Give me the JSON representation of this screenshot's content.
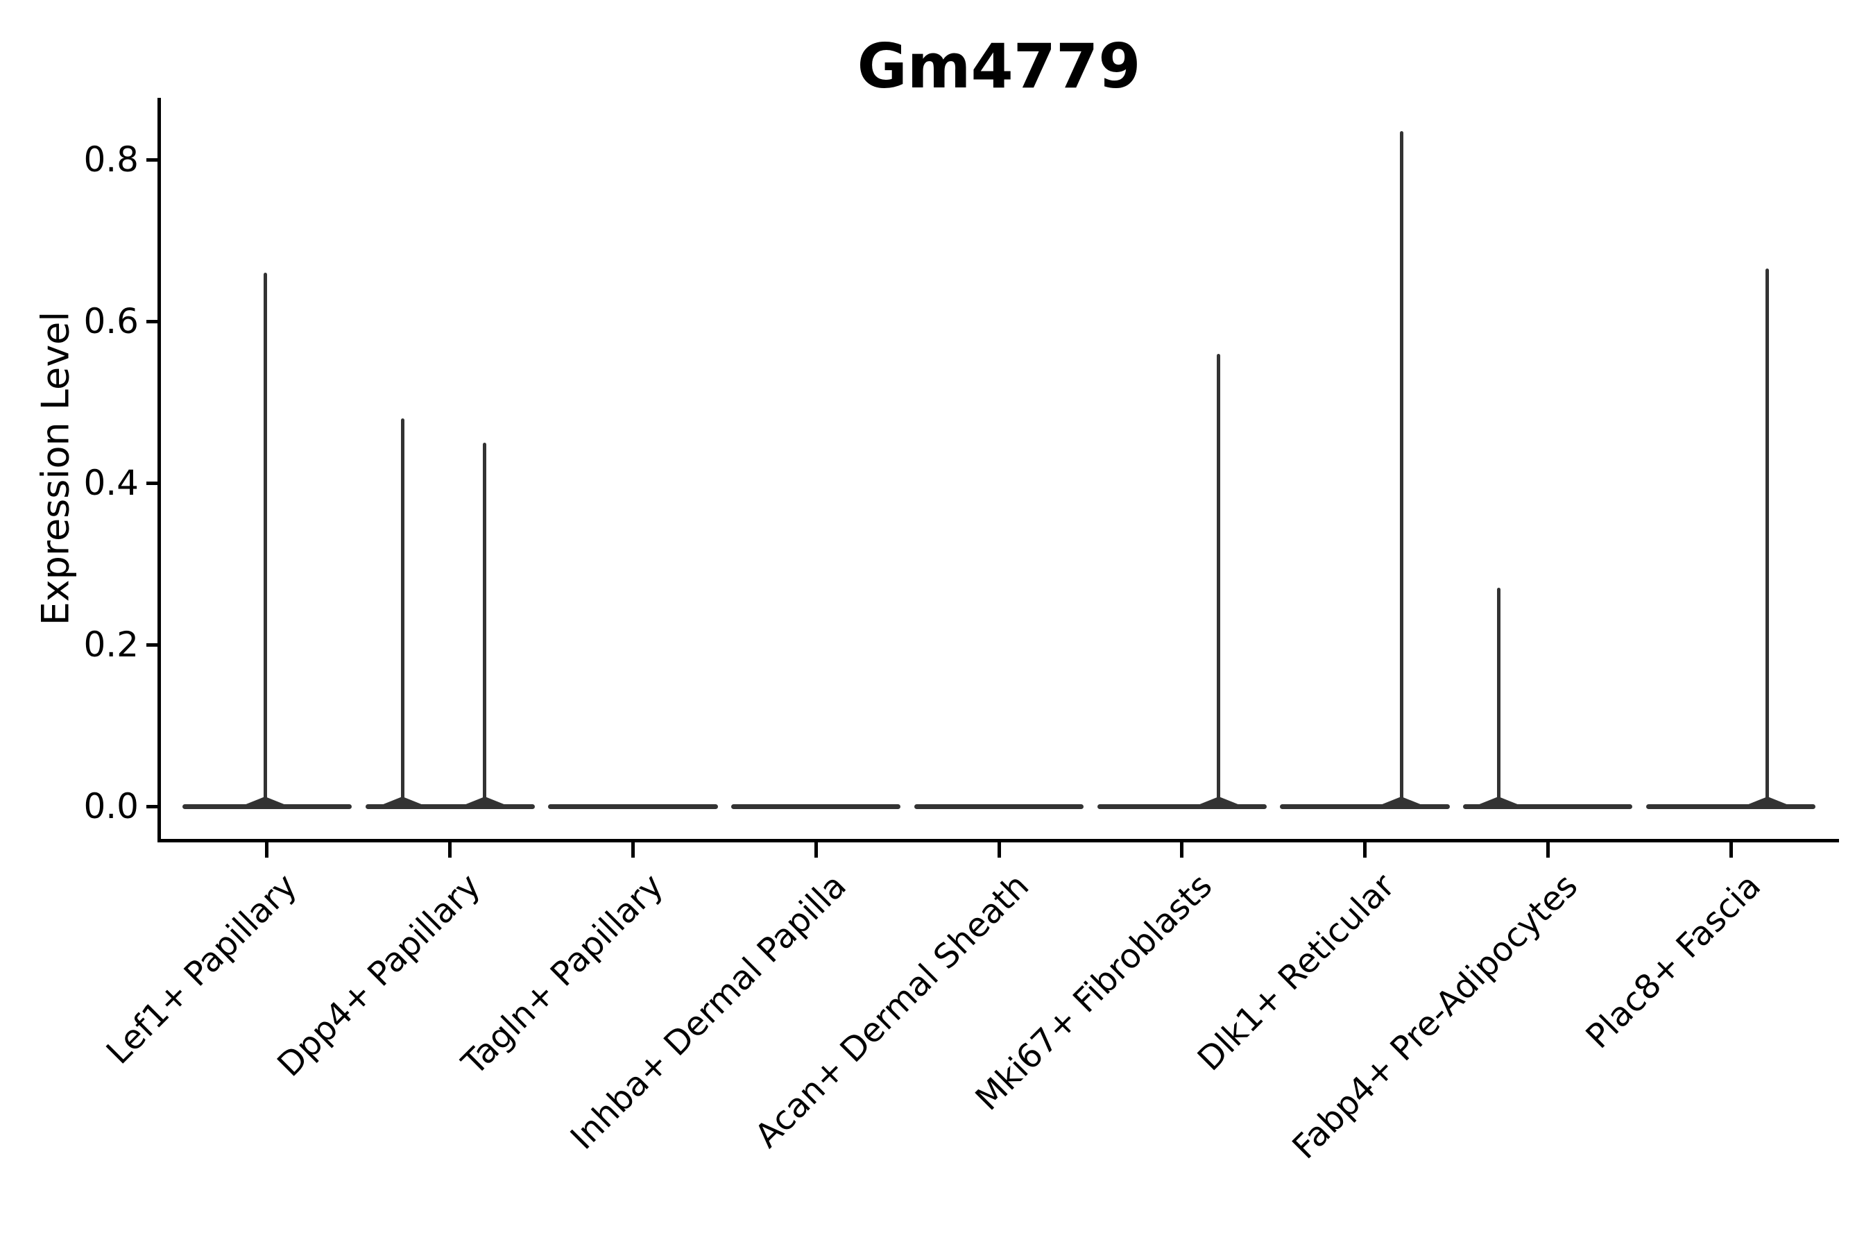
{
  "figure": {
    "background": "#ffffff"
  },
  "chart_data": {
    "type": "violin",
    "title": "Gm4779",
    "ylabel": "Expression Level",
    "xlabel": "",
    "grid": false,
    "legend": null,
    "yticks": [
      0.0,
      0.2,
      0.4,
      0.6,
      0.8
    ],
    "ytick_labels": [
      "0.0",
      "0.2",
      "0.4",
      "0.6",
      "0.8"
    ],
    "ylim": [
      -0.0403,
      0.8764
    ],
    "categories": [
      "Lef1+ Papillary",
      "Dpp4+ Papillary",
      "Tagln+ Papillary",
      "Inhba+ Dermal Papilla",
      "Acan+ Dermal Sheath",
      "Mki67+ Fibroblasts",
      "Dlk1+ Reticular",
      "Fabp4+ Pre-Adipocytes",
      "Plac8+ Fascia"
    ],
    "max_values": [
      0.66,
      0.48,
      0.0,
      0.0,
      0.0,
      0.56,
      0.83,
      0.27,
      0.66
    ],
    "violins": [
      {
        "category": "Lef1+ Papillary",
        "spikes": [
          {
            "value": 0.66,
            "offset_frac": -0.01
          }
        ]
      },
      {
        "category": "Dpp4+ Papillary",
        "spikes": [
          {
            "value": 0.48,
            "offset_frac": -0.26
          },
          {
            "value": 0.45,
            "offset_frac": 0.19
          }
        ]
      },
      {
        "category": "Tagln+ Papillary",
        "spikes": []
      },
      {
        "category": "Inhba+ Dermal Papilla",
        "spikes": []
      },
      {
        "category": "Acan+ Dermal Sheath",
        "spikes": []
      },
      {
        "category": "Mki67+ Fibroblasts",
        "spikes": [
          {
            "value": 0.56,
            "offset_frac": 0.2
          }
        ]
      },
      {
        "category": "Dlk1+ Reticular",
        "spikes": [
          {
            "value": 0.835,
            "offset_frac": 0.2
          }
        ]
      },
      {
        "category": "Fabp4+ Pre-Adipocytes",
        "spikes": [
          {
            "value": 0.27,
            "offset_frac": -0.27
          }
        ]
      },
      {
        "category": "Plac8+ Fascia",
        "spikes": [
          {
            "value": 0.665,
            "offset_frac": 0.2
          }
        ]
      }
    ],
    "colors": {
      "violin": "#333333",
      "axis": "#000000",
      "text": "#000000"
    }
  }
}
